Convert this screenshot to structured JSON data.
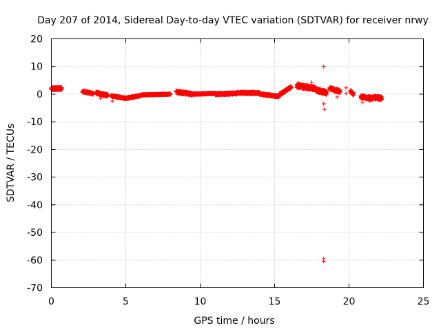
{
  "chart_data": {
    "type": "scatter",
    "title": "Day 207 of 2014, Sidereal Day-to-day VTEC variation (SDTVAR) for receiver nrwy",
    "xlabel": "GPS time / hours",
    "ylabel": "SDTVAR / TECUs",
    "xlim": [
      0,
      25
    ],
    "ylim": [
      -70,
      20
    ],
    "xticks": [
      0,
      5,
      10,
      15,
      20,
      25
    ],
    "yticks": [
      20,
      10,
      0,
      -10,
      -20,
      -30,
      -40,
      -50,
      -60,
      -70
    ],
    "grid": true,
    "marker": "+",
    "color": "#ff0000",
    "series": [
      {
        "name": "nrwy",
        "segments": [
          {
            "x": [
              0.0,
              0.7
            ],
            "y": [
              2.0,
              2.0
            ],
            "spread": 1.0
          },
          {
            "x": [
              2.1,
              2.8
            ],
            "y": [
              1.0,
              0.2
            ],
            "spread": 0.8
          },
          {
            "x": [
              3.0,
              3.8
            ],
            "y": [
              0.5,
              -0.5
            ],
            "spread": 1.0
          },
          {
            "x": [
              4.0,
              5.0
            ],
            "y": [
              -0.6,
              -1.5
            ],
            "spread": 0.6
          },
          {
            "x": [
              5.0,
              6.0
            ],
            "y": [
              -1.5,
              -0.5
            ],
            "spread": 0.6
          },
          {
            "x": [
              6.0,
              8.0
            ],
            "y": [
              -0.3,
              0.0
            ],
            "spread": 0.4
          },
          {
            "x": [
              8.4,
              9.5
            ],
            "y": [
              0.8,
              0.0
            ],
            "spread": 1.0
          },
          {
            "x": [
              9.5,
              11.0
            ],
            "y": [
              0.0,
              0.3
            ],
            "spread": 0.5
          },
          {
            "x": [
              11.0,
              12.5
            ],
            "y": [
              0.0,
              0.3
            ],
            "spread": 0.8
          },
          {
            "x": [
              12.5,
              14.0
            ],
            "y": [
              0.5,
              0.4
            ],
            "spread": 0.8
          },
          {
            "x": [
              14.0,
              15.3
            ],
            "y": [
              0.0,
              -0.8
            ],
            "spread": 0.7
          },
          {
            "x": [
              15.3,
              16.1
            ],
            "y": [
              -0.3,
              2.5
            ],
            "spread": 0.9
          },
          {
            "x": [
              16.5,
              17.8
            ],
            "y": [
              3.0,
              2.0
            ],
            "spread": 1.5
          },
          {
            "x": [
              17.8,
              18.5
            ],
            "y": [
              1.5,
              0.5
            ],
            "spread": 1.5
          },
          {
            "x": [
              18.7,
              19.4
            ],
            "y": [
              2.0,
              1.0
            ],
            "spread": 1.2
          },
          {
            "x": [
              20.1,
              20.3
            ],
            "y": [
              1.0,
              0.0
            ],
            "spread": 1.0
          },
          {
            "x": [
              20.8,
              21.6
            ],
            "y": [
              -1.0,
              -1.5
            ],
            "spread": 1.2
          },
          {
            "x": [
              21.6,
              22.2
            ],
            "y": [
              -1.2,
              -1.5
            ],
            "spread": 1.3
          }
        ],
        "points": [
          [
            18.3,
            10
          ],
          [
            18.3,
            -3.5
          ],
          [
            18.35,
            -5.5
          ],
          [
            18.3,
            -59.5
          ],
          [
            18.3,
            -60.5
          ],
          [
            4.1,
            -2.5
          ],
          [
            19.8,
            2.3
          ],
          [
            19.8,
            0.3
          ],
          [
            20.9,
            -3.0
          ],
          [
            17.5,
            4.3
          ],
          [
            3.3,
            -1.5
          ],
          [
            16.6,
            4.0
          ],
          [
            18.2,
            1.5
          ],
          [
            19.2,
            -1.0
          ],
          [
            21.4,
            -2.5
          ]
        ]
      }
    ]
  }
}
